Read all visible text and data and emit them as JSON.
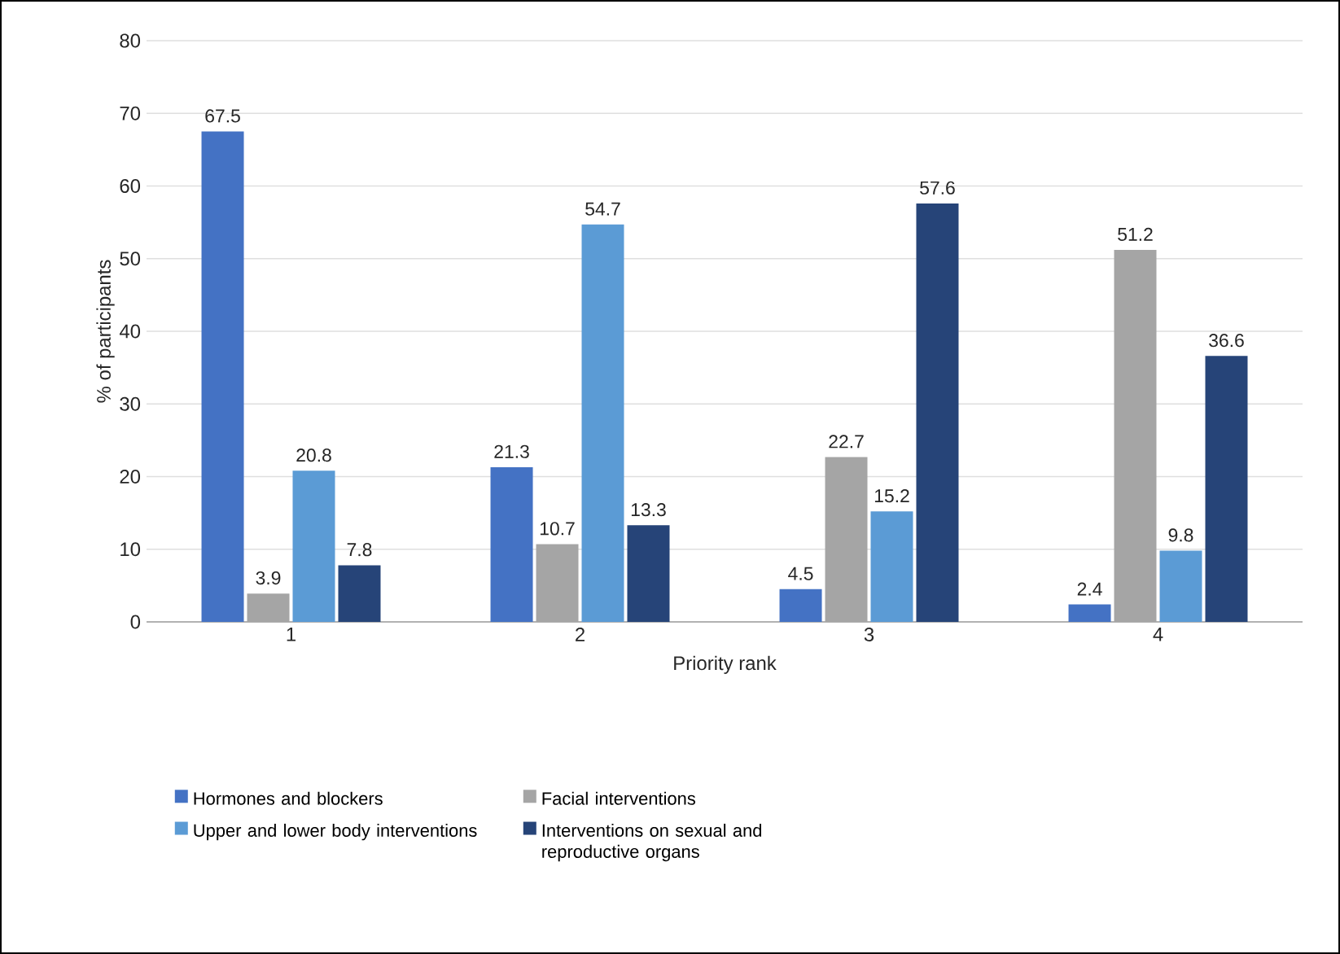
{
  "chart_data": {
    "type": "bar",
    "xlabel": "Priority rank",
    "ylabel": "% of participants",
    "categories": [
      "1",
      "2",
      "3",
      "4"
    ],
    "series": [
      {
        "name": "Hormones and blockers",
        "color": "#4472c4",
        "values": [
          67.5,
          21.3,
          4.5,
          2.4
        ]
      },
      {
        "name": "Facial interventions",
        "color": "#a5a5a5",
        "values": [
          3.9,
          10.7,
          22.7,
          51.2
        ]
      },
      {
        "name": "Upper and lower body interventions",
        "color": "#5b9bd5",
        "values": [
          20.8,
          54.7,
          15.2,
          9.8
        ]
      },
      {
        "name": "Interventions on sexual and reproductive organs",
        "color": "#264478",
        "values": [
          7.8,
          13.3,
          57.6,
          36.6
        ]
      }
    ],
    "ylim": [
      0,
      80
    ],
    "yticks": [
      0,
      10,
      20,
      30,
      40,
      50,
      60,
      70,
      80
    ],
    "grid": "y",
    "legend": "bottom",
    "data_labels": true
  }
}
